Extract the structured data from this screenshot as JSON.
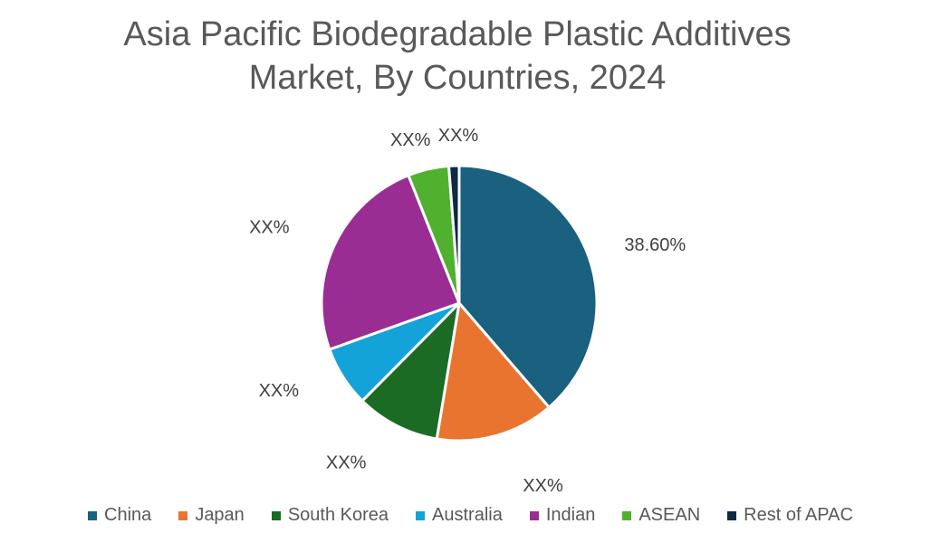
{
  "chart_data": {
    "type": "pie",
    "title_lines": [
      "Asia Pacific Biodegradable Plastic Additives",
      "Market, By Countries, 2024"
    ],
    "categories": [
      "China",
      "Japan",
      "South Korea",
      "Australia",
      "Indian",
      "ASEAN",
      "Rest of APAC"
    ],
    "values": [
      38.6,
      13.9,
      9.8,
      7.1,
      24.4,
      4.8,
      1.2
    ],
    "data_labels": [
      "38.60%",
      "XX%",
      "XX%",
      "XX%",
      "XX%",
      "XX%",
      "XX%"
    ],
    "colors": [
      "#1a607f",
      "#e9742f",
      "#1c6b25",
      "#13a3d9",
      "#9a2d94",
      "#50b12f",
      "#0f2a42"
    ],
    "legend_position": "bottom",
    "start_angle_deg": 0,
    "direction": "clockwise"
  }
}
